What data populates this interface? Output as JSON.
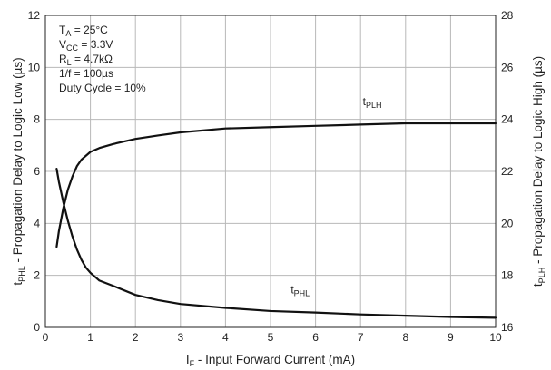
{
  "chart_data": {
    "type": "line",
    "xlabel": {
      "main": "I",
      "sub": "F",
      "rest": " - Input Forward Current (mA)"
    },
    "ylabel_left": {
      "main": "t",
      "sub": "PHL",
      "rest": " - Propagation Delay to Logic Low (µs)"
    },
    "ylabel_right": {
      "main": "t",
      "sub": "PLH",
      "rest": " - Propagation Delay to Logic High (µs)"
    },
    "xlim": [
      0,
      10
    ],
    "ylim_left": [
      0,
      12
    ],
    "ylim_right": [
      16,
      28
    ],
    "x_ticks": [
      "0",
      "1",
      "2",
      "3",
      "4",
      "5",
      "6",
      "7",
      "8",
      "9",
      "10"
    ],
    "y_left_ticks": [
      "0",
      "2",
      "4",
      "6",
      "8",
      "10",
      "12"
    ],
    "y_right_ticks": [
      "16",
      "18",
      "20",
      "22",
      "24",
      "26",
      "28"
    ],
    "grid": true,
    "conditions": [
      {
        "main": "T",
        "sub": "A",
        "rest": " = 25°C"
      },
      {
        "main": "V",
        "sub": "CC",
        "rest": " = 3.3V"
      },
      {
        "main": "R",
        "sub": "L",
        "rest": " = 4.7kΩ"
      },
      {
        "main": "1/f = 100µs",
        "sub": "",
        "rest": ""
      },
      {
        "main": "Duty Cycle = 10%",
        "sub": "",
        "rest": ""
      }
    ],
    "series": [
      {
        "name": {
          "main": "t",
          "sub": "PLH"
        },
        "axis": "right",
        "x": [
          0.25,
          0.3,
          0.4,
          0.5,
          0.6,
          0.7,
          0.8,
          1.0,
          1.2,
          1.5,
          2.0,
          2.5,
          3.0,
          4.0,
          5.0,
          6.0,
          7.0,
          8.0,
          9.0,
          10.0
        ],
        "y": [
          19.1,
          19.7,
          20.6,
          21.3,
          21.8,
          22.2,
          22.45,
          22.75,
          22.9,
          23.05,
          23.25,
          23.38,
          23.5,
          23.65,
          23.7,
          23.75,
          23.8,
          23.85,
          23.85,
          23.85
        ]
      },
      {
        "name": {
          "main": "t",
          "sub": "PHL"
        },
        "axis": "left",
        "x": [
          0.25,
          0.3,
          0.4,
          0.5,
          0.6,
          0.7,
          0.8,
          0.9,
          1.0,
          1.2,
          1.5,
          2.0,
          2.5,
          3.0,
          4.0,
          5.0,
          6.0,
          7.0,
          8.0,
          9.0,
          10.0
        ],
        "y": [
          6.1,
          5.6,
          4.8,
          4.1,
          3.5,
          3.0,
          2.6,
          2.3,
          2.1,
          1.8,
          1.6,
          1.25,
          1.05,
          0.9,
          0.75,
          0.63,
          0.57,
          0.5,
          0.45,
          0.4,
          0.37
        ]
      }
    ]
  }
}
